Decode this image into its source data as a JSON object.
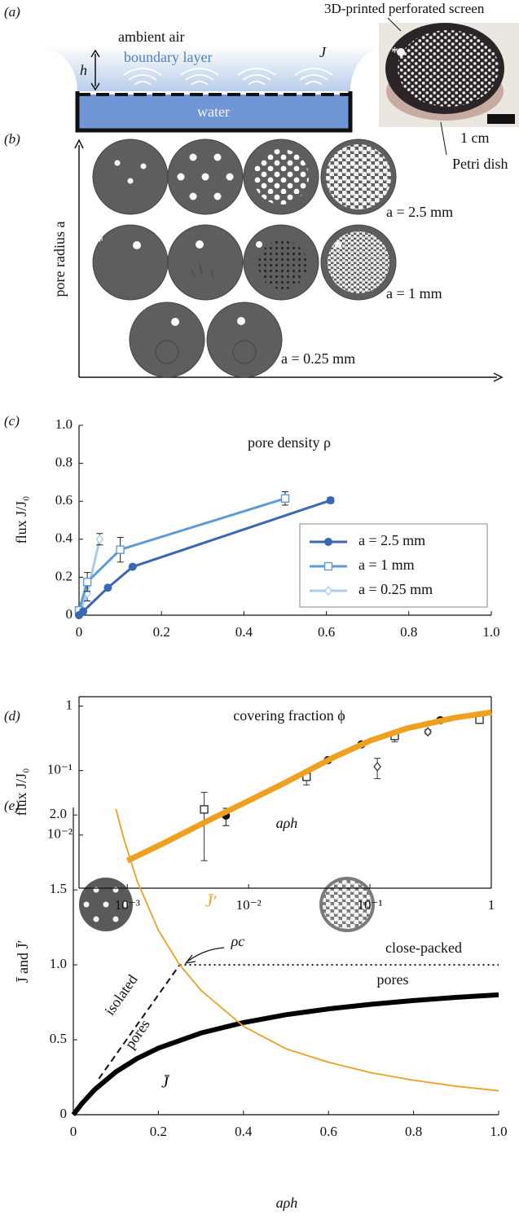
{
  "panel_a": {
    "label": "(a)",
    "h": "h",
    "ambient_air": "ambient air",
    "boundary_layer": "boundary layer",
    "flux": "J",
    "water": "water",
    "screen": "3D-printed perforated screen",
    "asterisk": "*",
    "scale_bar": "1 cm",
    "dish": "Petri dish"
  },
  "panel_b": {
    "label": "(b)",
    "y_axis": "pore radius a",
    "asterisk": "*",
    "rows": [
      "a = 2.5 mm",
      "a = 1 mm",
      "a = 0.25 mm"
    ]
  },
  "chart_data": [
    {
      "type": "line",
      "panel_label": "(c)",
      "title": "pore density ρ",
      "y_label": "flux J/J₀",
      "xlim": [
        0,
        1
      ],
      "ylim": [
        0,
        1
      ],
      "xticks": [
        0,
        0.2,
        0.4,
        0.6,
        0.8,
        {
          "value": 1,
          "label": "1.0"
        }
      ],
      "yticks": [
        0,
        0.2,
        0.4,
        0.6,
        0.8,
        {
          "value": 1,
          "label": "1.0"
        }
      ],
      "frame": "axes",
      "legend": "lower right",
      "series": [
        {
          "name": "a = 2.5 mm",
          "color": "#3b66b3",
          "marker": "circle",
          "x": [
            0,
            0.01,
            0.07,
            0.13,
            0.61
          ],
          "values": [
            0,
            0.02,
            0.145,
            0.255,
            0.605
          ],
          "errors": [
            0.005,
            0.006,
            0.01,
            0.01,
            0.015
          ]
        },
        {
          "name": "a = 1 mm",
          "color": "#5d9bd6",
          "marker": "square",
          "x": [
            0,
            0.02,
            0.1,
            0.5
          ],
          "values": [
            0.025,
            0.175,
            0.345,
            0.615
          ],
          "errors": [
            0.02,
            0.05,
            0.065,
            0.035
          ]
        },
        {
          "name": "a = 0.25 mm",
          "color": "#a6cdee",
          "marker": "diamond",
          "x": [
            0,
            0.02,
            0.05
          ],
          "values": [
            0.005,
            0.115,
            0.4
          ],
          "errors": [
            0.005,
            0.04,
            0.03
          ]
        }
      ]
    },
    {
      "type": "line",
      "panel_label": "(d)",
      "title": "covering fraction ϕ",
      "y_label": "flux J/J₀",
      "log_x": true,
      "log_y": true,
      "xlim": [
        0.0004,
        1
      ],
      "ylim": [
        0.0015,
        1.4
      ],
      "xticks": [
        {
          "value": 0.001,
          "label": "10⁻³"
        },
        {
          "value": 0.01,
          "label": "10⁻²"
        },
        {
          "value": 0.1,
          "label": "10⁻¹"
        },
        1
      ],
      "yticks": [
        {
          "value": 0.01,
          "label": "10⁻²"
        },
        {
          "value": 0.1,
          "label": "10⁻¹"
        },
        1
      ],
      "frame": "box",
      "series": [
        {
          "color": "#f0a020",
          "marker": "none",
          "x": [
            0.001,
            0.002,
            0.005,
            0.01,
            0.02,
            0.05,
            0.1,
            0.2,
            0.5,
            1
          ],
          "values": [
            0.004,
            0.0075,
            0.018,
            0.034,
            0.065,
            0.16,
            0.29,
            0.45,
            0.66,
            0.8
          ]
        },
        {
          "color": "#111111",
          "marker": "circle",
          "x": [
            0.0065,
            0.045,
            0.085,
            0.38
          ],
          "values": [
            0.02,
            0.145,
            0.255,
            0.605
          ],
          "errors": [
            0.006,
            0.01,
            0.01,
            0.015
          ]
        },
        {
          "color": "#333333",
          "marker": "square",
          "x": [
            0.0043,
            0.03,
            0.16,
            0.8
          ],
          "values": [
            0.025,
            0.08,
            0.345,
            0.615
          ],
          "errors": [
            0.021,
            0.02,
            0.065,
            0.035
          ]
        },
        {
          "color": "#333333",
          "marker": "diamond",
          "x": [
            0.115,
            0.3
          ],
          "values": [
            0.115,
            0.4
          ],
          "errors": [
            0.04,
            0.03
          ]
        }
      ]
    },
    {
      "type": "line",
      "panel_label": "(e)",
      "title": "aρh",
      "x_label": "aρh",
      "y_label": "J̄ and J̄′",
      "xlim": [
        0,
        1
      ],
      "ylim": [
        0,
        2.05
      ],
      "xticks": [
        0,
        0.2,
        0.4,
        0.6,
        0.8,
        {
          "value": 1,
          "label": "1.0"
        }
      ],
      "yticks": [
        0,
        0.5,
        {
          "value": 1,
          "label": "1.0"
        },
        1.5,
        {
          "value": 2,
          "label": "2.0"
        }
      ],
      "frame": "axes",
      "series": [
        {
          "name": "J̄′",
          "color": "#f0a020",
          "marker": "none",
          "x": [
            0.1,
            0.12,
            0.15,
            0.2,
            0.25,
            0.3,
            0.4,
            0.5,
            0.6,
            0.7,
            0.8,
            0.9,
            1
          ],
          "values": [
            2.04,
            1.83,
            1.56,
            1.23,
            1.0,
            0.83,
            0.59,
            0.44,
            0.35,
            0.28,
            0.23,
            0.19,
            0.16
          ]
        },
        {
          "name": "J̄",
          "color": "#000000",
          "marker": "none",
          "x": [
            0,
            0.02,
            0.05,
            0.1,
            0.15,
            0.2,
            0.3,
            0.4,
            0.5,
            0.6,
            0.7,
            0.8,
            0.9,
            1
          ],
          "values": [
            0,
            0.074,
            0.167,
            0.286,
            0.375,
            0.444,
            0.545,
            0.615,
            0.667,
            0.706,
            0.737,
            0.762,
            0.783,
            0.8
          ]
        }
      ],
      "reference_lines": [
        {
          "dash": "dashed",
          "x": [
            0.06,
            0.25
          ],
          "values": [
            0.24,
            1
          ]
        },
        {
          "dash": "dotted",
          "x": [
            0.25,
            1
          ],
          "values": [
            1,
            1
          ]
        }
      ],
      "annotations": [
        "ρc",
        "isolated",
        "pores",
        "close-packed",
        "pores"
      ]
    }
  ]
}
